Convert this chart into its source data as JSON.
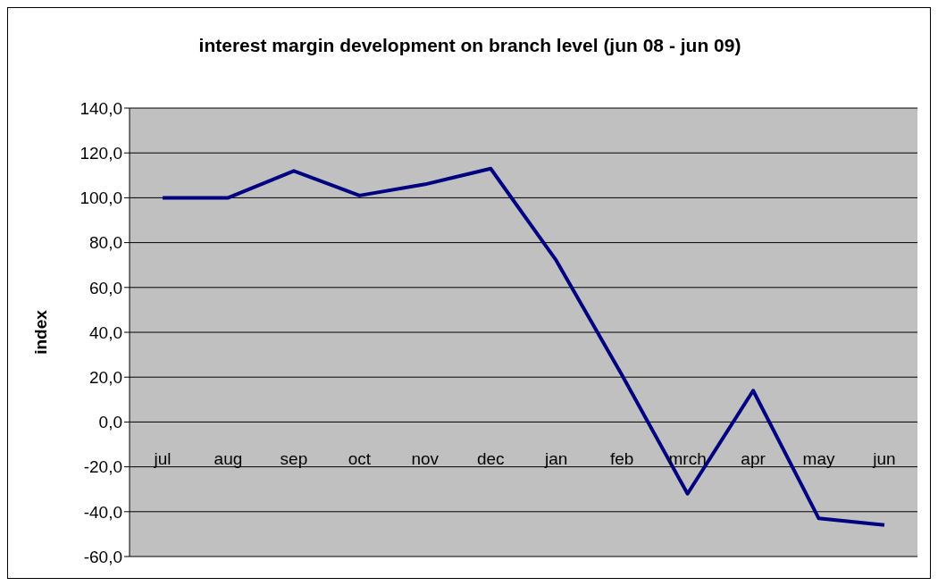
{
  "chart_data": {
    "type": "line",
    "title": "interest margin development on branch level (jun 08 - jun 09)",
    "ylabel": "index",
    "categories": [
      "jul",
      "aug",
      "sep",
      "oct",
      "nov",
      "dec",
      "jan",
      "feb",
      "mrch",
      "apr",
      "may",
      "jun"
    ],
    "series": [
      {
        "color": "#000080",
        "values": [
          100,
          100,
          112,
          101,
          106,
          113,
          72,
          21,
          -32,
          14,
          -43,
          -46
        ]
      }
    ],
    "ylim": [
      -60,
      140
    ],
    "yticks": [
      {
        "value": -60,
        "label": "-60,0"
      },
      {
        "value": -40,
        "label": "-40,0"
      },
      {
        "value": -20,
        "label": "-20,0"
      },
      {
        "value": 0,
        "label": "0,0"
      },
      {
        "value": 20,
        "label": "20,0"
      },
      {
        "value": 40,
        "label": "40,0"
      },
      {
        "value": 60,
        "label": "60,0"
      },
      {
        "value": 80,
        "label": "80,0"
      },
      {
        "value": 100,
        "label": "100,0"
      },
      {
        "value": 120,
        "label": "120,0"
      },
      {
        "value": 140,
        "label": "140,0"
      }
    ],
    "grid": "y",
    "legend": false,
    "marker": "none",
    "line_style": "solid"
  }
}
